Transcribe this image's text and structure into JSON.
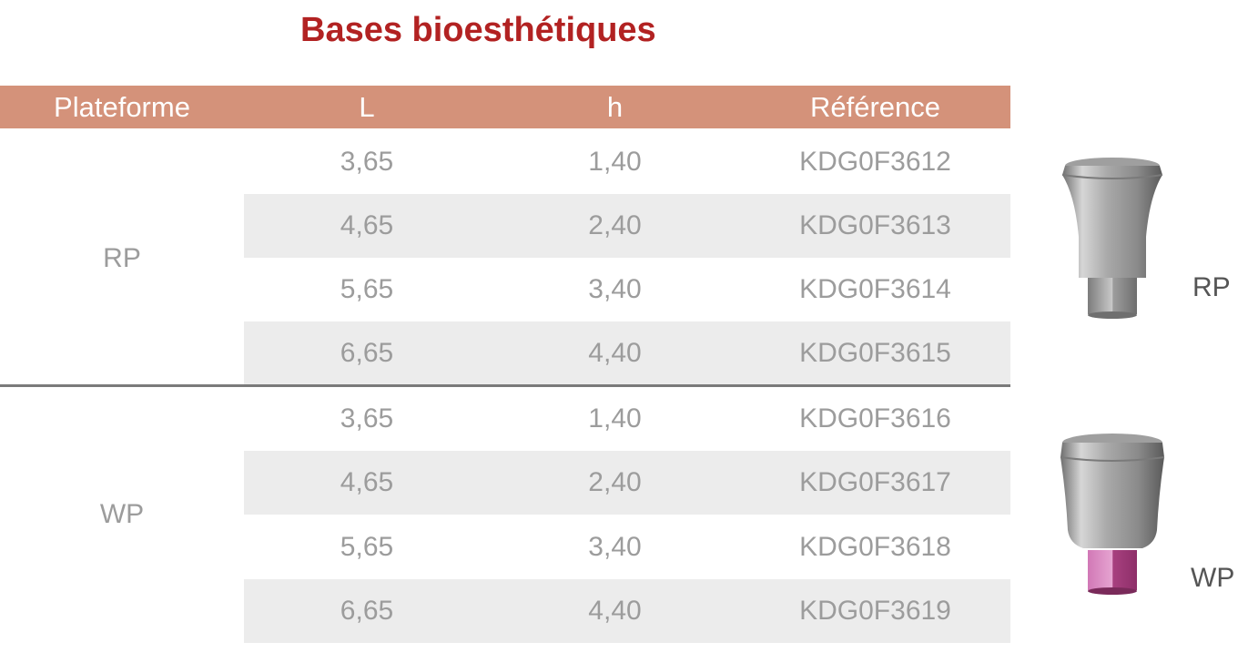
{
  "title": "Bases bioesthétiques",
  "columns": [
    "Plateforme",
    "L",
    "h",
    "Référence"
  ],
  "groups": [
    {
      "platform": "RP",
      "rows": [
        {
          "L": "3,65",
          "h": "1,40",
          "ref": "KDG0F3612"
        },
        {
          "L": "4,65",
          "h": "2,40",
          "ref": "KDG0F3613"
        },
        {
          "L": "5,65",
          "h": "3,40",
          "ref": "KDG0F3614"
        },
        {
          "L": "6,65",
          "h": "4,40",
          "ref": "KDG0F3615"
        }
      ]
    },
    {
      "platform": "WP",
      "rows": [
        {
          "L": "3,65",
          "h": "1,40",
          "ref": "KDG0F3616"
        },
        {
          "L": "4,65",
          "h": "2,40",
          "ref": "KDG0F3617"
        },
        {
          "L": "5,65",
          "h": "3,40",
          "ref": "KDG0F3618"
        },
        {
          "L": "6,65",
          "h": "4,40",
          "ref": "KDG0F3619"
        }
      ]
    }
  ],
  "images": [
    {
      "label": "RP",
      "icon": "rp-abutment-icon",
      "hex_color": "#9a9a9a"
    },
    {
      "label": "WP",
      "icon": "wp-abutment-icon",
      "hex_color": "#c0508f"
    }
  ],
  "colors": {
    "title": "#b22222",
    "header_bg": "#d4927a",
    "row_shade": "#ececec"
  }
}
